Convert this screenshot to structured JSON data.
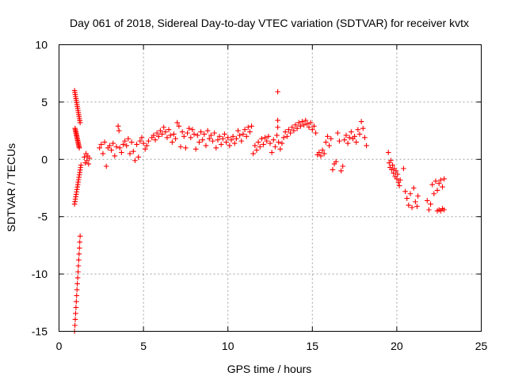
{
  "chart_data": {
    "type": "scatter",
    "title": "Day 061 of 2018, Sidereal Day-to-day VTEC variation (SDTVAR) for receiver kvtx",
    "xlabel": "GPS time / hours",
    "ylabel": "SDTVAR / TECUs",
    "xlim": [
      0,
      25
    ],
    "ylim": [
      -15,
      10
    ],
    "grid": true,
    "marker": "plus",
    "color": "#ff0000",
    "x_ticks": [
      "0",
      "5",
      "10",
      "15",
      "20",
      "25"
    ],
    "y_ticks": [
      "10",
      "5",
      "0",
      "-5",
      "-10",
      "-15"
    ],
    "segments": [
      {
        "name": "descent-1",
        "x_start": 0.92,
        "x_end": 1.25,
        "y_start": -15.0,
        "y_end": -6.7
      },
      {
        "name": "descent-2",
        "x_start": 0.92,
        "x_end": 1.3,
        "y_start": -3.9,
        "y_end": -0.5
      },
      {
        "name": "spike-top",
        "x_start": 0.92,
        "x_end": 1.25,
        "y_start": 6.0,
        "y_end": 3.2
      },
      {
        "name": "recovery",
        "x_start": 0.95,
        "x_end": 1.2,
        "y_start": 2.7,
        "y_end": 1.0
      }
    ],
    "series": [
      {
        "name": "SDTVAR",
        "points": [
          [
            1.5,
            0.2
          ],
          [
            1.55,
            -0.3
          ],
          [
            1.6,
            0.5
          ],
          [
            1.65,
            -0.1
          ],
          [
            1.7,
            0.3
          ],
          [
            1.75,
            -0.4
          ],
          [
            1.8,
            0.1
          ],
          [
            2.4,
            1.0
          ],
          [
            2.5,
            1.3
          ],
          [
            2.6,
            0.5
          ],
          [
            2.7,
            1.5
          ],
          [
            2.8,
            -0.6
          ],
          [
            2.9,
            1.0
          ],
          [
            3.0,
            1.2
          ],
          [
            3.1,
            0.8
          ],
          [
            3.2,
            1.4
          ],
          [
            3.3,
            0.3
          ],
          [
            3.4,
            1.1
          ],
          [
            3.5,
            2.9
          ],
          [
            3.55,
            2.5
          ],
          [
            3.6,
            1.0
          ],
          [
            3.7,
            0.6
          ],
          [
            3.8,
            1.3
          ],
          [
            3.9,
            1.6
          ],
          [
            4.0,
            1.2
          ],
          [
            4.1,
            1.8
          ],
          [
            4.2,
            0.5
          ],
          [
            4.3,
            1.5
          ],
          [
            4.4,
            0.7
          ],
          [
            4.5,
            -0.1
          ],
          [
            4.6,
            1.3
          ],
          [
            4.7,
            0.2
          ],
          [
            4.8,
            1.6
          ],
          [
            4.9,
            1.9
          ],
          [
            5.0,
            1.4
          ],
          [
            5.1,
            0.9
          ],
          [
            5.2,
            1.2
          ],
          [
            5.3,
            1.6
          ],
          [
            5.5,
            1.9
          ],
          [
            5.6,
            2.1
          ],
          [
            5.7,
            1.7
          ],
          [
            5.8,
            2.3
          ],
          [
            5.9,
            2.0
          ],
          [
            6.0,
            2.5
          ],
          [
            6.1,
            2.2
          ],
          [
            6.2,
            2.8
          ],
          [
            6.3,
            2.4
          ],
          [
            6.4,
            1.9
          ],
          [
            6.5,
            2.6
          ],
          [
            6.6,
            2.1
          ],
          [
            6.7,
            1.5
          ],
          [
            6.8,
            2.2
          ],
          [
            6.9,
            1.8
          ],
          [
            7.0,
            3.2
          ],
          [
            7.1,
            2.9
          ],
          [
            7.2,
            1.1
          ],
          [
            7.3,
            2.4
          ],
          [
            7.4,
            2.0
          ],
          [
            7.5,
            1.0
          ],
          [
            7.6,
            2.3
          ],
          [
            7.7,
            2.7
          ],
          [
            7.8,
            1.9
          ],
          [
            7.9,
            2.6
          ],
          [
            8.0,
            2.2
          ],
          [
            8.1,
            0.9
          ],
          [
            8.2,
            2.1
          ],
          [
            8.3,
            1.5
          ],
          [
            8.4,
            2.4
          ],
          [
            8.5,
            1.7
          ],
          [
            8.6,
            2.2
          ],
          [
            8.7,
            1.2
          ],
          [
            8.8,
            2.5
          ],
          [
            8.9,
            1.8
          ],
          [
            9.0,
            2.1
          ],
          [
            9.1,
            1.6
          ],
          [
            9.2,
            2.3
          ],
          [
            9.3,
            1.0
          ],
          [
            9.4,
            1.7
          ],
          [
            9.5,
            2.0
          ],
          [
            9.6,
            1.3
          ],
          [
            9.7,
            1.8
          ],
          [
            9.8,
            2.2
          ],
          [
            9.9,
            1.5
          ],
          [
            10.0,
            1.9
          ],
          [
            10.1,
            1.2
          ],
          [
            10.2,
            1.7
          ],
          [
            10.3,
            2.0
          ],
          [
            10.4,
            1.4
          ],
          [
            10.5,
            1.8
          ],
          [
            10.6,
            2.5
          ],
          [
            10.7,
            2.1
          ],
          [
            10.8,
            1.6
          ],
          [
            10.9,
            2.2
          ],
          [
            11.0,
            2.6
          ],
          [
            11.1,
            2.0
          ],
          [
            11.2,
            2.8
          ],
          [
            11.3,
            2.4
          ],
          [
            11.4,
            2.9
          ],
          [
            11.5,
            0.5
          ],
          [
            11.6,
            1.2
          ],
          [
            11.7,
            0.8
          ],
          [
            11.8,
            1.5
          ],
          [
            11.9,
            1.1
          ],
          [
            12.0,
            1.8
          ],
          [
            12.1,
            1.3
          ],
          [
            12.2,
            1.9
          ],
          [
            12.3,
            1.6
          ],
          [
            12.4,
            2.0
          ],
          [
            12.5,
            1.4
          ],
          [
            12.6,
            0.6
          ],
          [
            12.7,
            1.7
          ],
          [
            12.8,
            1.1
          ],
          [
            12.9,
            2.1
          ],
          [
            13.0,
            1.5
          ],
          [
            13.1,
            0.9
          ],
          [
            13.2,
            1.4
          ],
          [
            13.3,
            1.9
          ],
          [
            13.4,
            2.4
          ],
          [
            13.5,
            2.0
          ],
          [
            13.6,
            2.6
          ],
          [
            13.7,
            2.3
          ],
          [
            13.8,
            2.8
          ],
          [
            13.9,
            2.5
          ],
          [
            14.0,
            3.0
          ],
          [
            14.1,
            2.7
          ],
          [
            14.2,
            3.2
          ],
          [
            14.3,
            2.9
          ],
          [
            14.4,
            3.3
          ],
          [
            14.5,
            3.0
          ],
          [
            14.6,
            3.4
          ],
          [
            14.7,
            3.1
          ],
          [
            14.8,
            2.8
          ],
          [
            14.9,
            3.2
          ],
          [
            15.0,
            2.6
          ],
          [
            15.1,
            2.9
          ],
          [
            15.2,
            2.3
          ],
          [
            12.95,
            5.9
          ],
          [
            12.95,
            3.4
          ],
          [
            12.95,
            2.8
          ],
          [
            15.3,
            0.4
          ],
          [
            15.4,
            0.6
          ],
          [
            15.5,
            0.3
          ],
          [
            15.6,
            0.8
          ],
          [
            15.7,
            0.5
          ],
          [
            15.8,
            1.5
          ],
          [
            15.9,
            2.0
          ],
          [
            16.0,
            1.2
          ],
          [
            16.1,
            1.8
          ],
          [
            16.2,
            -0.9
          ],
          [
            16.3,
            -0.4
          ],
          [
            16.4,
            -0.2
          ],
          [
            16.5,
            2.3
          ],
          [
            16.6,
            1.6
          ],
          [
            16.7,
            -1.0
          ],
          [
            16.8,
            -0.6
          ],
          [
            16.9,
            1.7
          ],
          [
            17.0,
            2.1
          ],
          [
            17.1,
            1.4
          ],
          [
            17.2,
            1.9
          ],
          [
            17.3,
            2.4
          ],
          [
            17.4,
            1.8
          ],
          [
            17.5,
            2.0
          ],
          [
            17.6,
            1.5
          ],
          [
            17.7,
            2.6
          ],
          [
            17.8,
            2.2
          ],
          [
            17.9,
            3.3
          ],
          [
            18.0,
            2.7
          ],
          [
            18.1,
            1.9
          ],
          [
            18.2,
            1.2
          ],
          [
            19.5,
            0.6
          ],
          [
            19.55,
            -0.3
          ],
          [
            19.6,
            -0.7
          ],
          [
            19.65,
            -0.1
          ],
          [
            19.7,
            -0.9
          ],
          [
            19.75,
            -0.5
          ],
          [
            19.8,
            -1.2
          ],
          [
            19.85,
            -0.8
          ],
          [
            19.9,
            -1.5
          ],
          [
            19.95,
            -1.0
          ],
          [
            20.0,
            -1.7
          ],
          [
            20.05,
            -1.3
          ],
          [
            20.1,
            -2.0
          ],
          [
            20.15,
            -2.3
          ],
          [
            20.2,
            -1.8
          ],
          [
            20.4,
            -0.8
          ],
          [
            20.5,
            -2.8
          ],
          [
            20.6,
            -3.4
          ],
          [
            20.7,
            -4.0
          ],
          [
            20.8,
            -3.0
          ],
          [
            20.9,
            -4.2
          ],
          [
            21.0,
            -2.5
          ],
          [
            21.1,
            -3.7
          ],
          [
            21.2,
            -4.1
          ],
          [
            21.25,
            -3.2
          ],
          [
            21.8,
            -3.6
          ],
          [
            21.9,
            -4.4
          ],
          [
            22.0,
            -3.9
          ],
          [
            22.1,
            -2.2
          ],
          [
            22.2,
            -3.0
          ],
          [
            22.3,
            -1.9
          ],
          [
            22.4,
            -2.7
          ],
          [
            22.5,
            -2.1
          ],
          [
            22.6,
            -1.8
          ],
          [
            22.7,
            -2.4
          ],
          [
            22.8,
            -1.7
          ],
          [
            22.4,
            -4.5
          ],
          [
            22.5,
            -4.4
          ],
          [
            22.6,
            -4.5
          ],
          [
            22.7,
            -4.3
          ],
          [
            22.8,
            -4.4
          ]
        ]
      }
    ]
  }
}
